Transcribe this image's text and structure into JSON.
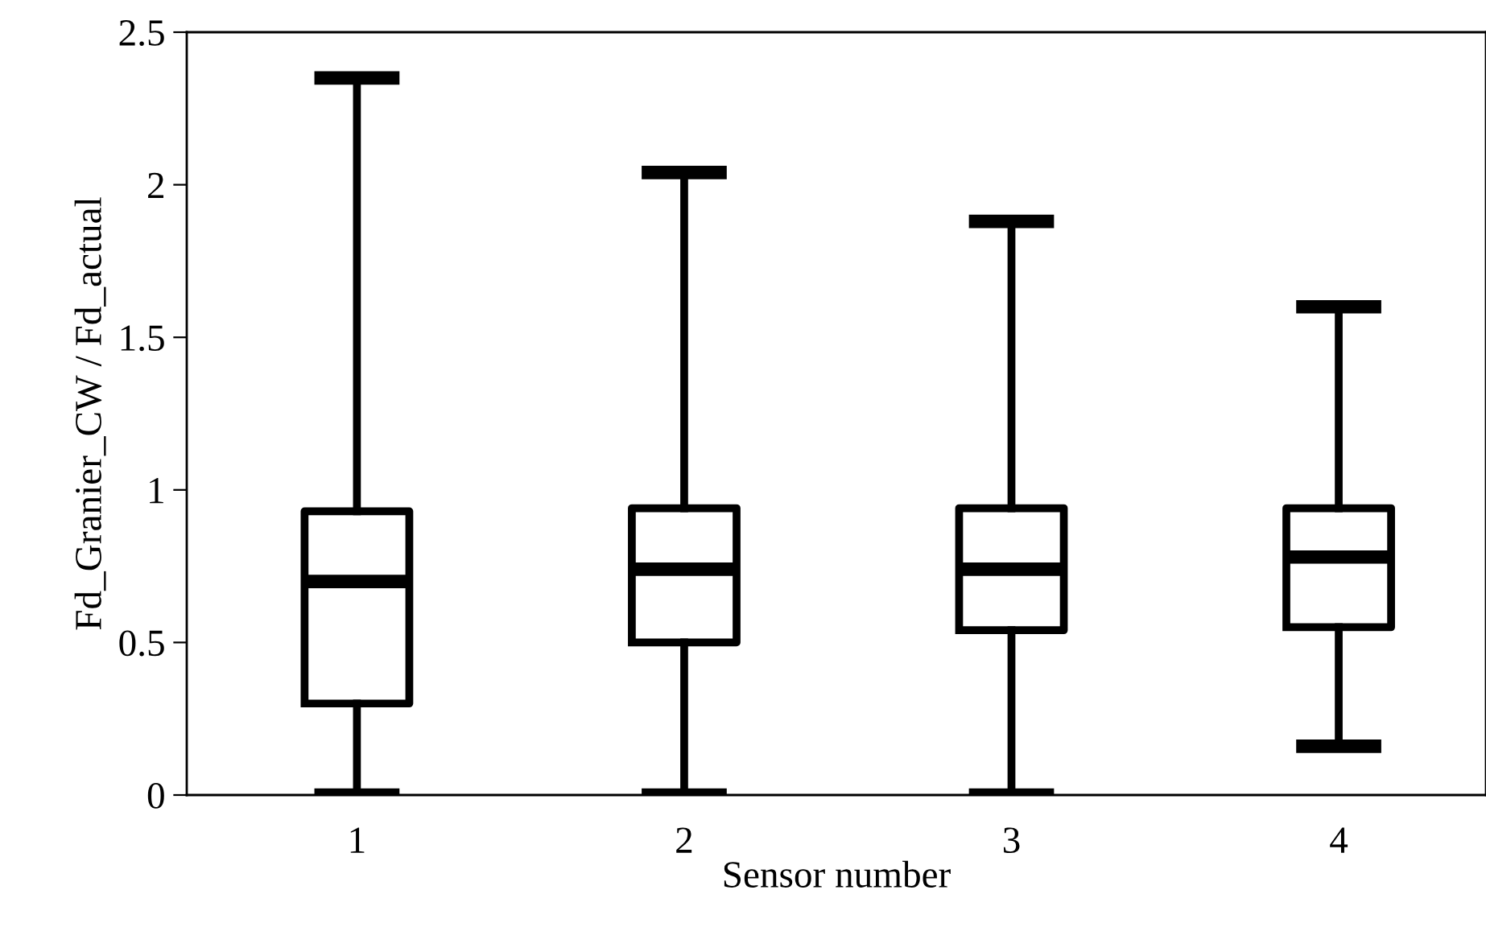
{
  "chart_data": {
    "type": "box",
    "xlabel": "Sensor number",
    "ylabel": "Fd_Granier_CW / Fd_actual",
    "categories": [
      "1",
      "2",
      "3",
      "4"
    ],
    "boxes": [
      {
        "low": 0,
        "q1": 0.3,
        "median": 0.7,
        "q3": 0.93,
        "high": 2.35
      },
      {
        "low": 0,
        "q1": 0.5,
        "median": 0.74,
        "q3": 0.94,
        "high": 2.04
      },
      {
        "low": 0,
        "q1": 0.54,
        "median": 0.74,
        "q3": 0.94,
        "high": 1.88
      },
      {
        "low": 0.16,
        "q1": 0.55,
        "median": 0.78,
        "q3": 0.94,
        "high": 1.6
      }
    ],
    "color": "#000000",
    "ylim": [
      0,
      2.5
    ],
    "yticks": [
      0,
      0.5,
      1,
      1.5,
      2,
      2.5
    ],
    "grid": false
  }
}
